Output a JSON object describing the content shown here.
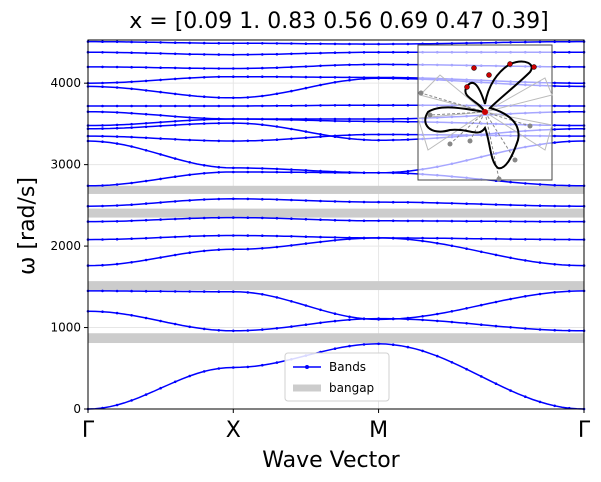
{
  "chart_data": {
    "type": "line",
    "title": "$x = [0.09 1.   0.83 0.56 0.69 0.47 0.39]$",
    "title_display": "x = [0.09 1.   0.83 0.56 0.69 0.47 0.39]",
    "xlabel": "Wave Vector",
    "ylabel": "ω [rad/s]",
    "ylim": [
      0,
      4530
    ],
    "grid": true,
    "legend_position": "lower-center",
    "colors": {
      "bands": "#0000ff",
      "bangap": "#cccccc",
      "grid": "#e6e6e6",
      "inset_bg": "#ffffff"
    },
    "x_ticks": [
      {
        "pos": 0,
        "label": "Γ"
      },
      {
        "pos": 1,
        "label": "X"
      },
      {
        "pos": 2,
        "label": "M"
      },
      {
        "pos": 3.414,
        "label": "Γ"
      }
    ],
    "y_ticks": [
      0,
      1000,
      2000,
      3000,
      4000
    ],
    "legend": [
      {
        "label": "Bands",
        "kind": "line-marker"
      },
      {
        "label": "bangap",
        "kind": "thick-line"
      }
    ],
    "bandgaps": [
      {
        "from": 810,
        "to": 930
      },
      {
        "from": 1460,
        "to": 1570
      },
      {
        "from": 2350,
        "to": 2460
      },
      {
        "from": 2640,
        "to": 2740
      }
    ],
    "series": [
      {
        "values": [
          0,
          510,
          800,
          0
        ]
      },
      {
        "values": [
          1200,
          960,
          1110,
          960
        ]
      },
      {
        "values": [
          1450,
          1440,
          1100,
          1450
        ]
      },
      {
        "values": [
          1760,
          1960,
          2100,
          1760
        ]
      },
      {
        "values": [
          2080,
          2130,
          2100,
          2080
        ]
      },
      {
        "values": [
          2300,
          2350,
          2310,
          2300
        ]
      },
      {
        "values": [
          2490,
          2580,
          2540,
          2490
        ]
      },
      {
        "values": [
          2740,
          2910,
          2900,
          2740
        ]
      },
      {
        "values": [
          3290,
          2960,
          2900,
          3290
        ]
      },
      {
        "values": [
          3350,
          3290,
          3370,
          3350
        ]
      },
      {
        "values": [
          3440,
          3510,
          3300,
          3440
        ]
      },
      {
        "values": [
          3480,
          3560,
          3530,
          3480
        ]
      },
      {
        "values": [
          3650,
          3560,
          3560,
          3650
        ]
      },
      {
        "values": [
          3720,
          3720,
          3730,
          3720
        ]
      },
      {
        "values": [
          3960,
          3820,
          4060,
          3960
        ]
      },
      {
        "values": [
          4000,
          4080,
          4070,
          4000
        ]
      },
      {
        "values": [
          4200,
          4180,
          4230,
          4200
        ]
      },
      {
        "values": [
          4380,
          4350,
          4380,
          4380
        ]
      },
      {
        "values": [
          4510,
          4490,
          4480,
          4510
        ]
      }
    ]
  }
}
